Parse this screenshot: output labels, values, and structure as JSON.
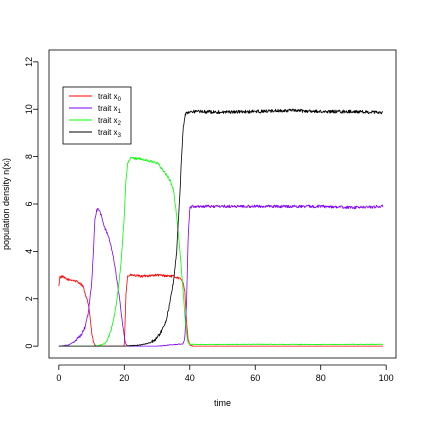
{
  "chart_data": {
    "type": "line",
    "xlabel": "time",
    "ylabel": "population density n(xᵢ)",
    "xlim": [
      -3,
      103
    ],
    "ylim": [
      -0.5,
      12.5
    ],
    "xticks": [
      "0",
      "20",
      "40",
      "60",
      "80",
      "100"
    ],
    "yticks": [
      "0",
      "2",
      "4",
      "6",
      "8",
      "10",
      "12"
    ],
    "grid": false,
    "legend_placement": "top-left",
    "series": [
      {
        "name": "trait x",
        "subscript": "0",
        "color": "#ff0000",
        "x": [
          0,
          0.3,
          0.6,
          1,
          2,
          3,
          4,
          5,
          6,
          7,
          7.5,
          8,
          9,
          9.5,
          10,
          10.5,
          11,
          11.5,
          12,
          13,
          20,
          20.5,
          21,
          22,
          25,
          30,
          35,
          37,
          38,
          38.5,
          39,
          39.5,
          40,
          41,
          50,
          60,
          70,
          80,
          90,
          99
        ],
        "y": [
          2.5,
          2.95,
          2.9,
          2.95,
          2.85,
          2.8,
          2.8,
          2.75,
          2.7,
          2.6,
          2.5,
          2.2,
          1.8,
          1.3,
          0.6,
          0.2,
          0.05,
          0,
          0,
          0,
          0,
          2.2,
          2.95,
          3.0,
          2.95,
          3.0,
          2.95,
          2.85,
          2.7,
          2.3,
          1.0,
          0.3,
          0.05,
          0,
          0,
          0,
          0,
          0,
          0,
          0
        ],
        "noise": 0.05
      },
      {
        "name": "trait x",
        "subscript": "1",
        "color": "#7f00ff",
        "x": [
          0,
          3,
          5,
          7,
          8,
          9,
          10,
          10.5,
          11,
          11.5,
          12,
          13,
          14,
          15,
          16,
          17,
          18,
          19,
          19.5,
          20,
          20.5,
          21,
          22,
          30,
          38,
          38.5,
          39,
          39.5,
          40,
          41,
          50,
          60,
          70,
          80,
          90,
          99
        ],
        "y": [
          0,
          0.05,
          0.2,
          0.5,
          0.8,
          1.4,
          2.6,
          3.8,
          5.3,
          5.7,
          5.85,
          5.5,
          5.0,
          4.7,
          4.2,
          3.5,
          2.6,
          1.5,
          0.9,
          0.4,
          0.1,
          0,
          0,
          0,
          0.1,
          0.4,
          1.8,
          4.5,
          5.85,
          5.9,
          5.9,
          5.9,
          5.9,
          5.9,
          5.85,
          5.9
        ],
        "noise": 0.06
      },
      {
        "name": "trait x",
        "subscript": "2",
        "color": "#00ff00",
        "x": [
          0,
          10,
          12,
          14,
          15,
          16,
          17,
          18,
          19,
          20,
          20.5,
          21,
          22,
          25,
          28,
          30,
          32,
          34,
          35,
          36,
          37,
          38,
          38.5,
          39,
          39.5,
          40,
          45,
          60,
          80,
          99
        ],
        "y": [
          0,
          0,
          0.02,
          0.1,
          0.3,
          0.7,
          1.3,
          2.2,
          3.5,
          5.5,
          7.0,
          7.7,
          7.95,
          7.9,
          7.8,
          7.75,
          7.4,
          7.0,
          6.6,
          5.5,
          4.0,
          2.3,
          1.3,
          0.5,
          0.15,
          0.08,
          0.07,
          0.08,
          0.07,
          0.08
        ],
        "noise": 0.05
      },
      {
        "name": "trait x",
        "subscript": "3",
        "color": "#000000",
        "x": [
          0,
          20,
          25,
          28,
          30,
          31,
          32,
          33,
          34,
          35,
          36,
          37,
          37.5,
          38,
          38.5,
          39,
          40,
          42,
          50,
          60,
          70,
          80,
          90,
          99
        ],
        "y": [
          0,
          0,
          0.05,
          0.15,
          0.35,
          0.55,
          0.8,
          1.2,
          1.9,
          2.7,
          4.0,
          6.5,
          8.0,
          9.2,
          9.7,
          9.85,
          9.9,
          9.9,
          9.88,
          9.9,
          9.95,
          9.9,
          9.9,
          9.85
        ],
        "noise": 0.07
      }
    ]
  }
}
